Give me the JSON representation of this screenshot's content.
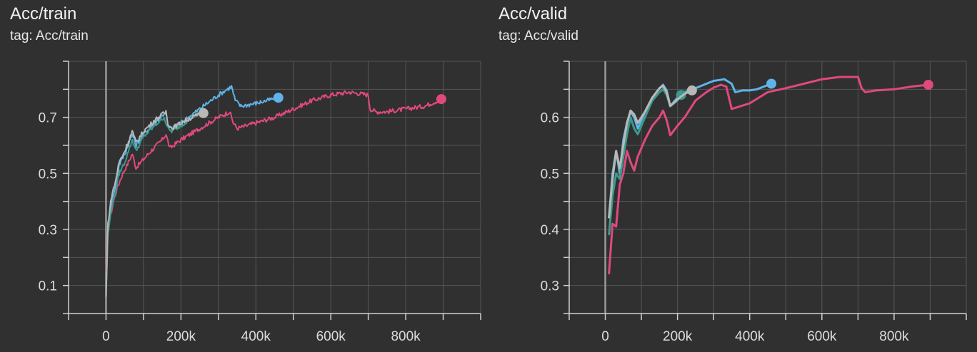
{
  "chart_data": [
    {
      "type": "line",
      "title": "Acc/train",
      "subtitle": "tag: Acc/train",
      "xlabel": "",
      "ylabel": "",
      "xlim": [
        -100000,
        1000000
      ],
      "ylim": [
        0.0,
        0.9
      ],
      "xticks": [
        0,
        200000,
        400000,
        600000,
        800000
      ],
      "xtick_labels": [
        "0",
        "200k",
        "400k",
        "600k",
        "800k"
      ],
      "yticks": [
        0.1,
        0.3,
        0.5,
        0.7
      ],
      "ytick_labels": [
        "0.1",
        "0.3",
        "0.5",
        "0.7"
      ],
      "grid": true,
      "series": [
        {
          "color": "#e0497e",
          "noise": 0.008,
          "end_marker": true,
          "x": [
            0,
            5000,
            20000,
            30000,
            45000,
            60000,
            70000,
            80000,
            100000,
            120000,
            150000,
            160000,
            170000,
            180000,
            200000,
            250000,
            300000,
            330000,
            340000,
            350000,
            400000,
            450000,
            500000,
            550000,
            600000,
            650000,
            700000,
            705000,
            720000,
            750000,
            800000,
            850000,
            895000
          ],
          "y": [
            0.15,
            0.3,
            0.4,
            0.45,
            0.5,
            0.54,
            0.57,
            0.52,
            0.55,
            0.58,
            0.62,
            0.64,
            0.59,
            0.6,
            0.62,
            0.66,
            0.7,
            0.72,
            0.68,
            0.66,
            0.68,
            0.7,
            0.73,
            0.76,
            0.78,
            0.79,
            0.78,
            0.73,
            0.72,
            0.72,
            0.73,
            0.74,
            0.765
          ]
        },
        {
          "color": "#5fb3e8",
          "noise": 0.008,
          "end_marker": true,
          "x": [
            0,
            5000,
            15000,
            25000,
            35000,
            50000,
            70000,
            80000,
            100000,
            130000,
            160000,
            165000,
            175000,
            200000,
            250000,
            300000,
            335000,
            345000,
            360000,
            400000,
            460000
          ],
          "y": [
            0.08,
            0.3,
            0.4,
            0.45,
            0.53,
            0.57,
            0.64,
            0.6,
            0.64,
            0.68,
            0.72,
            0.67,
            0.66,
            0.68,
            0.73,
            0.78,
            0.81,
            0.76,
            0.74,
            0.75,
            0.77
          ]
        },
        {
          "color": "#3b9a8b",
          "noise": 0.007,
          "end_marker": false,
          "x": [
            0,
            5000,
            15000,
            25000,
            35000,
            50000,
            70000,
            80000,
            100000,
            130000,
            155000,
            165000,
            175000,
            200000,
            230000,
            250000
          ],
          "y": [
            0.06,
            0.28,
            0.38,
            0.43,
            0.5,
            0.54,
            0.62,
            0.58,
            0.63,
            0.67,
            0.7,
            0.66,
            0.65,
            0.67,
            0.7,
            0.715
          ]
        },
        {
          "color": "#b8b8b8",
          "noise": 0.008,
          "end_marker": true,
          "x": [
            0,
            5000,
            15000,
            25000,
            35000,
            50000,
            70000,
            80000,
            100000,
            130000,
            160000,
            165000,
            175000,
            200000,
            230000,
            260000
          ],
          "y": [
            0.06,
            0.32,
            0.42,
            0.47,
            0.54,
            0.58,
            0.65,
            0.61,
            0.65,
            0.69,
            0.72,
            0.68,
            0.66,
            0.68,
            0.7,
            0.715
          ]
        }
      ]
    },
    {
      "type": "line",
      "title": "Acc/valid",
      "subtitle": "tag: Acc/valid",
      "xlabel": "",
      "ylabel": "",
      "xlim": [
        -100000,
        1000000
      ],
      "ylim": [
        0.25,
        0.7
      ],
      "xticks": [
        0,
        200000,
        400000,
        600000,
        800000
      ],
      "xtick_labels": [
        "0",
        "200k",
        "400k",
        "600k",
        "800k"
      ],
      "yticks": [
        0.3,
        0.4,
        0.5,
        0.6
      ],
      "ytick_labels": [
        "0.3",
        "0.4",
        "0.5",
        "0.6"
      ],
      "grid": true,
      "series": [
        {
          "color": "#e0497e",
          "noise": 0,
          "end_marker": true,
          "x": [
            10000,
            20000,
            30000,
            40000,
            50000,
            60000,
            70000,
            80000,
            90000,
            110000,
            130000,
            150000,
            160000,
            170000,
            180000,
            200000,
            220000,
            250000,
            280000,
            300000,
            320000,
            335000,
            350000,
            400000,
            450000,
            500000,
            550000,
            600000,
            650000,
            700000,
            710000,
            720000,
            750000,
            800000,
            850000,
            895000
          ],
          "y": [
            0.32,
            0.41,
            0.405,
            0.48,
            0.5,
            0.54,
            0.52,
            0.505,
            0.53,
            0.56,
            0.585,
            0.6,
            0.612,
            0.595,
            0.568,
            0.585,
            0.6,
            0.63,
            0.645,
            0.653,
            0.658,
            0.655,
            0.615,
            0.625,
            0.645,
            0.652,
            0.66,
            0.668,
            0.672,
            0.672,
            0.652,
            0.645,
            0.648,
            0.65,
            0.655,
            0.658
          ]
        },
        {
          "color": "#5fb3e8",
          "noise": 0,
          "end_marker": true,
          "x": [
            10000,
            20000,
            30000,
            40000,
            50000,
            60000,
            70000,
            80000,
            90000,
            110000,
            130000,
            150000,
            160000,
            170000,
            180000,
            200000,
            220000,
            250000,
            280000,
            300000,
            330000,
            350000,
            360000,
            380000,
            400000,
            420000,
            440000,
            460000
          ],
          "y": [
            0.42,
            0.5,
            0.54,
            0.5,
            0.56,
            0.59,
            0.61,
            0.6,
            0.58,
            0.61,
            0.635,
            0.652,
            0.658,
            0.648,
            0.62,
            0.635,
            0.645,
            0.652,
            0.66,
            0.665,
            0.668,
            0.66,
            0.645,
            0.648,
            0.648,
            0.65,
            0.655,
            0.66
          ]
        },
        {
          "color": "#3b9a8b",
          "noise": 0,
          "end_marker": true,
          "x": [
            10000,
            20000,
            30000,
            40000,
            50000,
            60000,
            70000,
            80000,
            90000,
            110000,
            130000,
            150000,
            160000,
            170000,
            180000,
            200000,
            210000
          ],
          "y": [
            0.39,
            0.46,
            0.5,
            0.49,
            0.53,
            0.57,
            0.6,
            0.58,
            0.57,
            0.6,
            0.63,
            0.645,
            0.65,
            0.64,
            0.62,
            0.63,
            0.64
          ]
        },
        {
          "color": "#b8b8b8",
          "noise": 0,
          "end_marker": true,
          "x": [
            10000,
            20000,
            30000,
            40000,
            50000,
            60000,
            70000,
            80000,
            90000,
            110000,
            130000,
            150000,
            160000,
            170000,
            180000,
            200000,
            220000,
            240000
          ],
          "y": [
            0.42,
            0.49,
            0.54,
            0.51,
            0.55,
            0.59,
            0.612,
            0.605,
            0.59,
            0.61,
            0.635,
            0.652,
            0.656,
            0.645,
            0.62,
            0.632,
            0.642,
            0.648
          ]
        }
      ]
    }
  ]
}
